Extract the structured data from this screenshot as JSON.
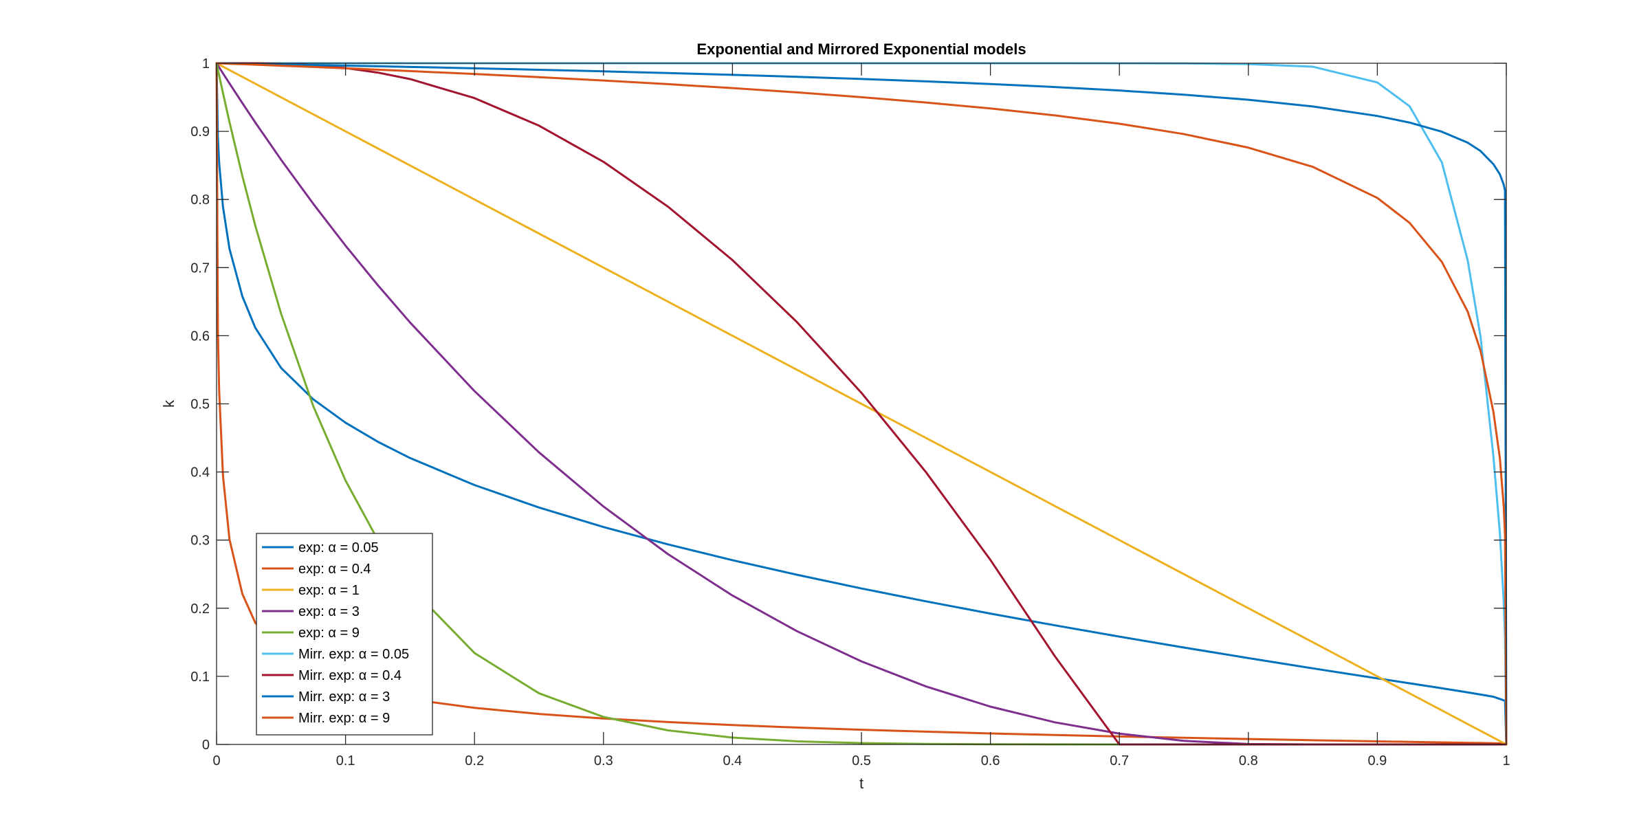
{
  "chart_data": {
    "type": "line",
    "title": "Exponential and Mirrored Exponential models",
    "xlabel": "t",
    "ylabel": "k",
    "xlim": [
      0,
      1
    ],
    "ylim": [
      0,
      1
    ],
    "x_ticks": [
      "0",
      "0.1",
      "0.2",
      "0.3",
      "0.4",
      "0.5",
      "0.6",
      "0.7",
      "0.8",
      "0.9",
      "1"
    ],
    "y_ticks": [
      "0",
      "0.1",
      "0.2",
      "0.3",
      "0.4",
      "0.5",
      "0.6",
      "0.7",
      "0.8",
      "0.9",
      "1"
    ],
    "grid": false,
    "box": true,
    "legend_position": "bottom-left",
    "x": [
      0,
      0.001,
      0.002,
      0.005,
      0.01,
      0.02,
      0.03,
      0.05,
      0.075,
      0.1,
      0.125,
      0.15,
      0.2,
      0.25,
      0.3,
      0.35,
      0.4,
      0.45,
      0.5,
      0.55,
      0.6,
      0.65,
      0.7,
      0.75,
      0.8,
      0.85,
      0.9,
      0.925,
      0.95,
      0.97,
      0.98,
      0.99,
      0.995,
      0.998,
      0.999,
      1
    ],
    "series": [
      {
        "name": "exp: α = 0.05",
        "legend_label": "exp: ",
        "alpha_label": "α = 0.05",
        "color": "#0072BD",
        "values": [
          1,
          0.8922,
          0.8541,
          0.7887,
          0.7278,
          0.6578,
          0.6118,
          0.5528,
          0.5066,
          0.4723,
          0.4444,
          0.4205,
          0.3808,
          0.3478,
          0.3192,
          0.2937,
          0.2705,
          0.2491,
          0.229,
          0.2101,
          0.1921,
          0.1749,
          0.1583,
          0.1423,
          0.1268,
          0.1117,
          0.097,
          0.0898,
          0.0825,
          0.0764,
          0.0733,
          0.07,
          0.0668,
          0.0648,
          0.0641,
          0
        ]
      },
      {
        "name": "exp: α = 0.4",
        "legend_label": "exp: ",
        "alpha_label": "α = 0.4",
        "color": "#D95319",
        "values": [
          1,
          0.61,
          0.5203,
          0.3939,
          0.3013,
          0.221,
          0.1787,
          0.1335,
          0.1051,
          0.0876,
          0.0755,
          0.0664,
          0.0537,
          0.0448,
          0.0381,
          0.0329,
          0.0285,
          0.0248,
          0.0216,
          0.0188,
          0.0162,
          0.0139,
          0.0117,
          0.0098,
          0.0079,
          0.0062,
          0.0046,
          0.0038,
          0.003,
          0.0024,
          0.0021,
          0.0018,
          0.0016,
          0.0015,
          0.0015,
          0
        ]
      },
      {
        "name": "exp: α = 1",
        "legend_label": "exp: ",
        "alpha_label": "α = 1",
        "color": "#EDB120",
        "values": [
          1,
          0.999,
          0.998,
          0.995,
          0.99,
          0.98,
          0.97,
          0.95,
          0.925,
          0.9,
          0.875,
          0.85,
          0.8,
          0.75,
          0.7,
          0.65,
          0.6,
          0.55,
          0.5,
          0.45,
          0.4,
          0.35,
          0.3,
          0.25,
          0.2,
          0.15,
          0.1,
          0.075,
          0.05,
          0.03,
          0.02,
          0.01,
          0.005,
          0.002,
          0.001,
          0
        ]
      },
      {
        "name": "exp: α = 3",
        "legend_label": "exp: ",
        "alpha_label": "α = 3",
        "color": "#7E2F8E",
        "values": [
          1,
          0.997,
          0.994,
          0.9851,
          0.9704,
          0.9415,
          0.9131,
          0.8584,
          0.7936,
          0.7322,
          0.6743,
          0.6195,
          0.5187,
          0.4288,
          0.3493,
          0.2794,
          0.2186,
          0.1663,
          0.122,
          0.0852,
          0.0555,
          0.0325,
          0.0159,
          0.0053,
          0.0006,
          0,
          0,
          0,
          0,
          0,
          0,
          0,
          0,
          0,
          0,
          0
        ]
      },
      {
        "name": "exp: α = 9",
        "legend_label": "exp: ",
        "alpha_label": "α = 9",
        "color": "#77AC30",
        "values": [
          1,
          0.991,
          0.9821,
          0.956,
          0.9138,
          0.8345,
          0.7617,
          0.6325,
          0.4966,
          0.3874,
          0.3003,
          0.2316,
          0.1342,
          0.0751,
          0.0404,
          0.0207,
          0.0101,
          0.0046,
          0.002,
          0.0008,
          0.0003,
          0.0001,
          0,
          0,
          0,
          0,
          0,
          0,
          0,
          0,
          0,
          0,
          0,
          0,
          0,
          0
        ]
      },
      {
        "name": "Mirr. exp: α = 0.05",
        "legend_label": "Mirr. exp: ",
        "alpha_label": "α = 0.05",
        "color": "#4DBEEE",
        "values": [
          1,
          1,
          1,
          1,
          1,
          1,
          1,
          1,
          1,
          1,
          1,
          1,
          1,
          1,
          1,
          1,
          1,
          1,
          1,
          1,
          1,
          1,
          0.9999,
          0.9997,
          0.9987,
          0.9949,
          0.9718,
          0.9369,
          0.8546,
          0.7111,
          0.5988,
          0.4228,
          0.3106,
          0.2093,
          0.1568,
          0
        ]
      },
      {
        "name": "Mirr. exp: α = 0.4",
        "legend_label": "Mirr. exp: ",
        "alpha_label": "α = 0.4",
        "color": "#A2142F",
        "values": [
          1,
          1,
          1,
          1,
          1,
          1,
          0.9999,
          0.9993,
          0.9972,
          0.993,
          0.9863,
          0.9768,
          0.9488,
          0.9084,
          0.8553,
          0.7895,
          0.711,
          0.62,
          0.5162,
          0.3998,
          0.2709,
          0.1294,
          0,
          0,
          0,
          0,
          0,
          0,
          0,
          0,
          0,
          0,
          0,
          0,
          0,
          0
        ]
      },
      {
        "name": "Mirr. exp: α = 3",
        "legend_label": "Mirr. exp: ",
        "alpha_label": "α = 3",
        "color": "#0072BD",
        "values": [
          1,
          1,
          1,
          0.9999,
          0.9997,
          0.9993,
          0.999,
          0.9983,
          0.9974,
          0.9965,
          0.9956,
          0.9946,
          0.9926,
          0.9904,
          0.9881,
          0.9856,
          0.983,
          0.9801,
          0.9769,
          0.9734,
          0.9695,
          0.9651,
          0.96,
          0.9538,
          0.9464,
          0.9366,
          0.9226,
          0.9129,
          0.8995,
          0.8834,
          0.8712,
          0.8518,
          0.837,
          0.8218,
          0.813,
          0
        ]
      },
      {
        "name": "Mirr. exp: α = 9",
        "legend_label": "Mirr. exp: ",
        "alpha_label": "α = 9",
        "color": "#D95319",
        "values": [
          1,
          1,
          0.9999,
          0.9997,
          0.9993,
          0.9986,
          0.9979,
          0.9964,
          0.9946,
          0.9926,
          0.9906,
          0.9885,
          0.9842,
          0.9796,
          0.9746,
          0.9693,
          0.9635,
          0.9572,
          0.9502,
          0.9424,
          0.9336,
          0.9234,
          0.9112,
          0.896,
          0.8761,
          0.8479,
          0.8023,
          0.7657,
          0.7084,
          0.6357,
          0.578,
          0.4882,
          0.4203,
          0.3494,
          0.3068,
          0
        ]
      }
    ]
  }
}
